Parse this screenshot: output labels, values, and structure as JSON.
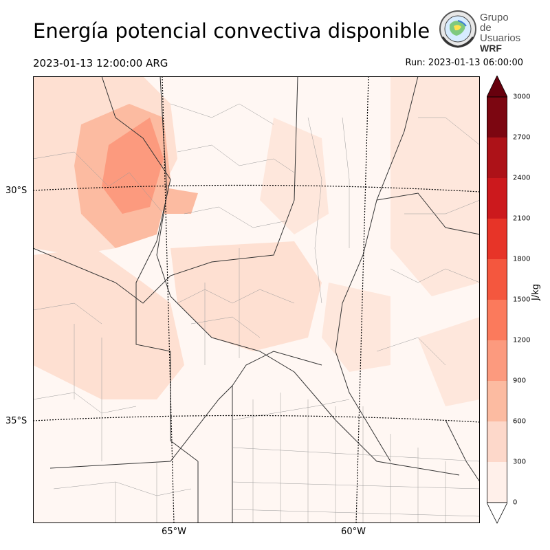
{
  "header": {
    "title": "Energía potencial convectiva disponible",
    "valid_time": "2023-01-13 12:00:00 ARG",
    "run_time": "Run: 2023-01-13 06:00:00"
  },
  "logo": {
    "line1": "Grupo de",
    "line2": "Usuarios",
    "line3": "WRF"
  },
  "map": {
    "lat_labels": [
      "30°S",
      "35°S"
    ],
    "lon_labels": [
      "65°W",
      "60°W"
    ]
  },
  "colorbar": {
    "unit": "J/kg",
    "ticks": [
      "0",
      "300",
      "600",
      "900",
      "1200",
      "1500",
      "1800",
      "2100",
      "2400",
      "2700",
      "3000"
    ],
    "colors": [
      "#fff0ea",
      "#fdd8ca",
      "#fcbba1",
      "#fc9a7e",
      "#fb7a5c",
      "#f4573e",
      "#e73428",
      "#cc191d",
      "#ad1218",
      "#7c0611"
    ],
    "extend_color": "#67000d"
  }
}
